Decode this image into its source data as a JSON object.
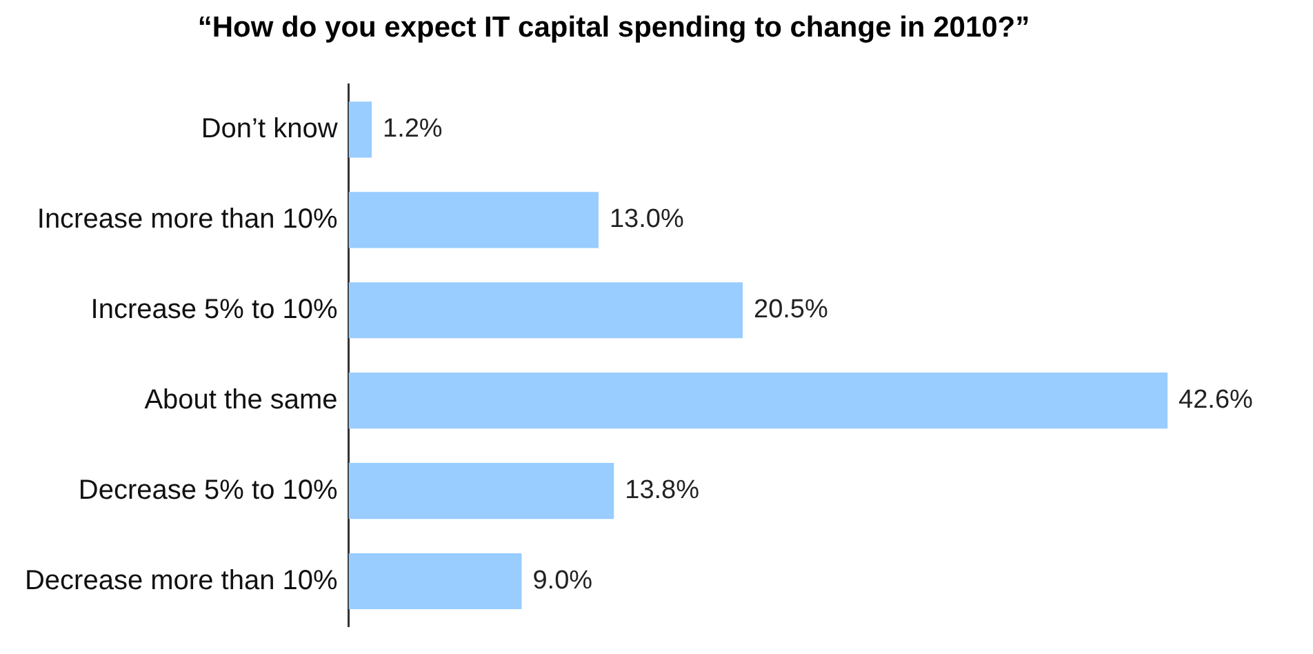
{
  "chart_data": {
    "type": "bar",
    "orientation": "horizontal",
    "title": "“How do you expect IT capital spending to change in 2010?”",
    "categories": [
      "Don’t know",
      "Increase more than 10%",
      "Increase 5% to 10%",
      "About the same",
      "Decrease 5% to 10%",
      "Decrease more than 10%"
    ],
    "values": [
      1.2,
      13.0,
      20.5,
      42.6,
      13.8,
      9.0
    ],
    "value_labels": [
      "1.2%",
      "13.0%",
      "20.5%",
      "42.6%",
      "13.8%",
      "9.0%"
    ],
    "color": "#99ccff"
  }
}
